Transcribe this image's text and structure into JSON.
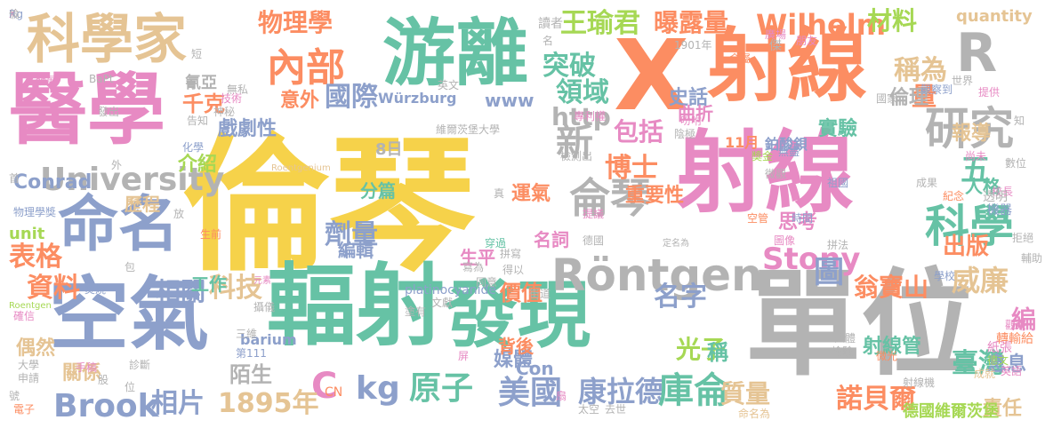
{
  "palette": {
    "yellow": "#f6d24a",
    "pink": "#e78ac3",
    "orange": "#fc8d62",
    "green": "#66c2a5",
    "blue": "#8da0cb",
    "lime": "#a6d854",
    "tan": "#e5c494",
    "gray": "#b3b3b3"
  },
  "words": [
    {
      "text": "倫琴",
      "color": "yellow"
    },
    {
      "text": "單位",
      "color": "gray"
    },
    {
      "text": "射線",
      "color": "pink"
    },
    {
      "text": "X",
      "color": "orange"
    },
    {
      "text": "射線",
      "color": "orange"
    },
    {
      "text": "游離",
      "color": "green"
    },
    {
      "text": "醫學",
      "color": "pink"
    },
    {
      "text": "科學家",
      "color": "tan"
    },
    {
      "text": "空氣",
      "color": "blue"
    },
    {
      "text": "輻射",
      "color": "green"
    },
    {
      "text": "發現",
      "color": "green"
    },
    {
      "text": "命名",
      "color": "blue"
    },
    {
      "text": "R",
      "color": "gray"
    },
    {
      "text": "研究",
      "color": "gray"
    },
    {
      "text": "科學",
      "color": "green"
    },
    {
      "text": "Röntgen",
      "color": "gray"
    },
    {
      "text": "侖琴",
      "color": "gray"
    },
    {
      "text": "University",
      "color": "gray"
    },
    {
      "text": "內部",
      "color": "orange"
    },
    {
      "text": "物理學",
      "color": "orange"
    },
    {
      "text": "王瑜君",
      "color": "lime"
    },
    {
      "text": "突破",
      "color": "green"
    },
    {
      "text": "領域",
      "color": "green"
    },
    {
      "text": "曝露量",
      "color": "orange"
    },
    {
      "text": "Wilhelm",
      "color": "orange"
    },
    {
      "text": "材料",
      "color": "lime"
    },
    {
      "text": "稱為",
      "color": "tan"
    },
    {
      "text": "量",
      "color": "orange"
    },
    {
      "text": "國際",
      "color": "blue"
    },
    {
      "text": "http",
      "color": "gray"
    },
    {
      "text": "包括",
      "color": "pink"
    },
    {
      "text": "新",
      "color": "gray"
    },
    {
      "text": "博士",
      "color": "orange"
    },
    {
      "text": "Stony",
      "color": "pink"
    },
    {
      "text": "Brook",
      "color": "blue"
    },
    {
      "text": "劑量",
      "color": "blue"
    },
    {
      "text": "相關",
      "color": "blue"
    },
    {
      "text": "科技",
      "color": "tan"
    },
    {
      "text": "資料",
      "color": "orange"
    },
    {
      "text": "表格",
      "color": "orange"
    },
    {
      "text": "C",
      "color": "pink"
    },
    {
      "text": "kg",
      "color": "blue"
    },
    {
      "text": "原子",
      "color": "green"
    },
    {
      "text": "美國",
      "color": "blue"
    },
    {
      "text": "康拉德",
      "color": "blue"
    },
    {
      "text": "庫侖",
      "color": "green"
    },
    {
      "text": "1895年",
      "color": "tan"
    },
    {
      "text": "相片",
      "color": "blue"
    },
    {
      "text": "諾貝爾",
      "color": "orange"
    },
    {
      "text": "臺灣",
      "color": "green"
    },
    {
      "text": "威廉",
      "color": "tan"
    },
    {
      "text": "出版",
      "color": "orange"
    },
    {
      "text": "五",
      "color": "green"
    },
    {
      "text": "翁寶山",
      "color": "orange"
    },
    {
      "text": "圖",
      "color": "blue"
    },
    {
      "text": "光子",
      "color": "lime"
    },
    {
      "text": "名字",
      "color": "blue"
    },
    {
      "text": "質量",
      "color": "tan"
    },
    {
      "text": "千克",
      "color": "orange"
    },
    {
      "text": "戲劇性",
      "color": "blue"
    },
    {
      "text": "意外",
      "color": "orange"
    },
    {
      "text": "歷程",
      "color": "tan"
    },
    {
      "text": "介紹",
      "color": "lime"
    },
    {
      "text": "Conrad",
      "color": "blue"
    },
    {
      "text": "分篇",
      "color": "green"
    },
    {
      "text": "運氣",
      "color": "orange"
    },
    {
      "text": "名詞",
      "color": "pink"
    },
    {
      "text": "生平",
      "color": "pink"
    },
    {
      "text": "工作",
      "color": "green"
    },
    {
      "text": "媒體",
      "color": "blue"
    },
    {
      "text": "背後",
      "color": "orange"
    },
    {
      "text": "價值",
      "color": "orange"
    },
    {
      "text": "重要性",
      "color": "orange"
    },
    {
      "text": "史話",
      "color": "blue"
    },
    {
      "text": "曲折",
      "color": "pink"
    },
    {
      "text": "實驗",
      "color": "green"
    },
    {
      "text": "倫理",
      "color": "gray"
    },
    {
      "text": "報導",
      "color": "tan"
    },
    {
      "text": "人格",
      "color": "green"
    },
    {
      "text": "思考",
      "color": "pink"
    },
    {
      "text": "射線管",
      "color": "green"
    },
    {
      "text": "陌生",
      "color": "gray"
    },
    {
      "text": "偶然",
      "color": "tan"
    },
    {
      "text": "關係",
      "color": "tan"
    },
    {
      "text": "編",
      "color": "pink"
    },
    {
      "text": "息息",
      "color": "blue"
    },
    {
      "text": "責任",
      "color": "tan"
    },
    {
      "text": "德國維爾茨堡",
      "color": "lime"
    },
    {
      "text": "Würzburg",
      "color": "blue"
    },
    {
      "text": "www",
      "color": "blue"
    },
    {
      "text": "稱",
      "color": "green"
    },
    {
      "text": "Con",
      "color": "blue"
    },
    {
      "text": "unit",
      "color": "lime"
    },
    {
      "text": "barium",
      "color": "blue"
    },
    {
      "text": "platinocyanide",
      "color": "blue"
    },
    {
      "text": "quantity",
      "color": "tan"
    },
    {
      "text": "Roentgenium",
      "color": "tan"
    },
    {
      "text": "Roentgen",
      "color": "lime"
    },
    {
      "text": "BaPt",
      "color": "gray"
    },
    {
      "text": "CN",
      "color": "orange"
    },
    {
      "text": "編輯",
      "color": "blue"
    },
    {
      "text": "11月",
      "color": "orange"
    },
    {
      "text": "8日",
      "color": "gray"
    },
    {
      "text": "1901年",
      "color": "gray"
    },
    {
      "text": "鉑酸鋇",
      "color": "blue"
    },
    {
      "text": "物理學獎",
      "color": "blue"
    },
    {
      "text": "氰亞",
      "color": "gray"
    },
    {
      "text": "第111",
      "color": "blue"
    },
    {
      "text": "元素",
      "color": "pink"
    },
    {
      "text": "讀者",
      "color": "gray"
    },
    {
      "text": "專利權",
      "color": "pink"
    },
    {
      "text": "維爾茨堡大學",
      "color": "gray"
    },
    {
      "text": "定名為",
      "color": "gray"
    },
    {
      "text": "命名為",
      "color": "tan"
    },
    {
      "text": "傑",
      "color": "gray"
    },
    {
      "text": "朋友",
      "color": "pink"
    },
    {
      "text": "世界",
      "color": "gray"
    },
    {
      "text": "觀察到",
      "color": "blue"
    },
    {
      "text": "提供",
      "color": "pink"
    },
    {
      "text": "知",
      "color": "gray"
    },
    {
      "text": "尚未",
      "color": "pink"
    },
    {
      "text": "成果",
      "color": "gray"
    },
    {
      "text": "校長",
      "color": "pink"
    },
    {
      "text": "透明",
      "color": "gray"
    },
    {
      "text": "機器",
      "color": "blue"
    },
    {
      "text": "數位",
      "color": "gray"
    },
    {
      "text": "紀念",
      "color": "orange"
    },
    {
      "text": "輔助",
      "color": "gray"
    },
    {
      "text": "觀察",
      "color": "pink"
    },
    {
      "text": "轉輸給",
      "color": "orange"
    },
    {
      "text": "紙張",
      "color": "pink"
    },
    {
      "text": "德文",
      "color": "lime"
    },
    {
      "text": "英語",
      "color": "pink"
    },
    {
      "text": "成就",
      "color": "tan"
    },
    {
      "text": "射線機",
      "color": "gray"
    },
    {
      "text": "微光",
      "color": "orange"
    },
    {
      "text": "人體",
      "color": "gray"
    },
    {
      "text": "檢驗",
      "color": "gray"
    },
    {
      "text": "時間",
      "color": "blue"
    },
    {
      "text": "學校",
      "color": "blue"
    },
    {
      "text": "拼法",
      "color": "gray"
    },
    {
      "text": "空管",
      "color": "orange"
    },
    {
      "text": "圖像",
      "color": "pink"
    },
    {
      "text": "國家",
      "color": "gray"
    },
    {
      "text": "祖國",
      "color": "blue"
    },
    {
      "text": "微觀",
      "color": "gray"
    },
    {
      "text": "無盡",
      "color": "blue"
    },
    {
      "text": "獎金",
      "color": "lime"
    },
    {
      "text": "吩咐",
      "color": "pink"
    },
    {
      "text": "陰極",
      "color": "gray"
    },
    {
      "text": "金屬",
      "color": "orange"
    },
    {
      "text": "廣場",
      "color": "pink"
    },
    {
      "text": "名",
      "color": "gray"
    },
    {
      "text": "英文",
      "color": "gray"
    },
    {
      "text": "無私",
      "color": "gray"
    },
    {
      "text": "神秘",
      "color": "gray"
    },
    {
      "text": "技術",
      "color": "pink"
    },
    {
      "text": "告知",
      "color": "gray"
    },
    {
      "text": "化學",
      "color": "blue"
    },
    {
      "text": "發展",
      "color": "pink"
    },
    {
      "text": "發出",
      "color": "gray"
    },
    {
      "text": "外",
      "color": "gray"
    },
    {
      "text": "首",
      "color": "gray"
    },
    {
      "text": "放",
      "color": "gray"
    },
    {
      "text": "生前",
      "color": "orange"
    },
    {
      "text": "包",
      "color": "gray"
    },
    {
      "text": "焚燒",
      "color": "blue"
    },
    {
      "text": "提議",
      "color": "pink"
    },
    {
      "text": "德國",
      "color": "gray"
    },
    {
      "text": "穿過",
      "color": "green"
    },
    {
      "text": "拼寫",
      "color": "gray"
    },
    {
      "text": "寫為",
      "color": "gray"
    },
    {
      "text": "得以",
      "color": "gray"
    },
    {
      "text": "街道",
      "color": "gray"
    },
    {
      "text": "同意",
      "color": "gray"
    },
    {
      "text": "文獻",
      "color": "gray"
    },
    {
      "text": "塗有",
      "color": "gray"
    },
    {
      "text": "攝儀",
      "color": "gray"
    },
    {
      "text": "三維",
      "color": "gray"
    },
    {
      "text": "診斷",
      "color": "gray"
    },
    {
      "text": "大學",
      "color": "gray"
    },
    {
      "text": "申請",
      "color": "gray"
    },
    {
      "text": "號",
      "color": "gray"
    },
    {
      "text": "電子",
      "color": "orange"
    },
    {
      "text": "確信",
      "color": "pink"
    },
    {
      "text": "手稿",
      "color": "pink"
    },
    {
      "text": "股",
      "color": "gray"
    },
    {
      "text": "位",
      "color": "gray"
    },
    {
      "text": "屏",
      "color": "pink"
    },
    {
      "text": "扇",
      "color": "pink"
    },
    {
      "text": "太空",
      "color": "gray"
    },
    {
      "text": "去世",
      "color": "gray"
    },
    {
      "text": "短",
      "color": "gray"
    },
    {
      "text": "拒絕",
      "color": "gray"
    },
    {
      "text": "檢測出",
      "color": "gray"
    },
    {
      "text": "真",
      "color": "gray"
    },
    {
      "text": "X",
      "color": "pink"
    },
    {
      "text": "Rg",
      "color": "blue"
    },
    {
      "text": "倫",
      "color": "gray"
    }
  ]
}
